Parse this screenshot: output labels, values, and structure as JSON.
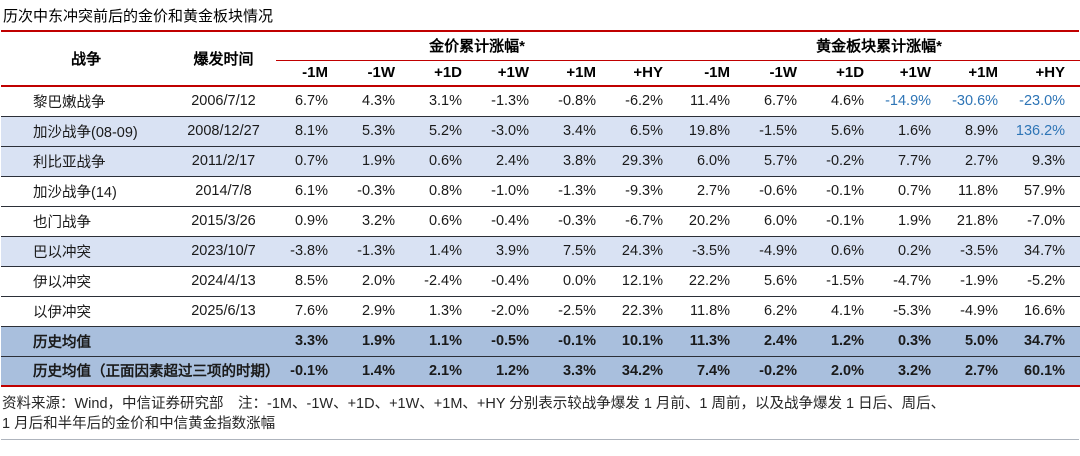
{
  "title": "历次中东冲突前后的金价和黄金板块情况",
  "colors": {
    "accent_red": "#C00000",
    "stripe_light_blue": "#D9E2F3",
    "summary_blue": "#A9BFDD",
    "highlight_text_blue": "#2E75B6"
  },
  "table": {
    "col_war": "战争",
    "col_date": "爆发时间",
    "group_gold_price": "金价累计涨幅*",
    "group_gold_sector": "黄金板块累计涨幅*",
    "period_labels": [
      "-1M",
      "-1W",
      "+1D",
      "+1W",
      "+1M",
      "+HY"
    ],
    "rows": [
      {
        "war": "黎巴嫩战争",
        "date": "2006/7/12",
        "style": "plain",
        "summary": false,
        "values": [
          "6.7%",
          "4.3%",
          "3.1%",
          "-1.3%",
          "-0.8%",
          "-6.2%",
          "11.4%",
          "6.7%",
          "4.6%",
          "-14.9%",
          "-30.6%",
          "-23.0%"
        ],
        "blue": [
          9,
          10,
          11
        ]
      },
      {
        "war": "加沙战争(08-09)",
        "date": "2008/12/27",
        "style": "light",
        "summary": false,
        "values": [
          "8.1%",
          "5.3%",
          "5.2%",
          "-3.0%",
          "3.4%",
          "6.5%",
          "19.8%",
          "-1.5%",
          "5.6%",
          "1.6%",
          "8.9%",
          "136.2%"
        ],
        "blue": [
          11
        ]
      },
      {
        "war": "利比亚战争",
        "date": "2011/2/17",
        "style": "light",
        "summary": false,
        "values": [
          "0.7%",
          "1.9%",
          "0.6%",
          "2.4%",
          "3.8%",
          "29.3%",
          "6.0%",
          "5.7%",
          "-0.2%",
          "7.7%",
          "2.7%",
          "9.3%"
        ],
        "blue": []
      },
      {
        "war": "加沙战争(14)",
        "date": "2014/7/8",
        "style": "plain",
        "summary": false,
        "values": [
          "6.1%",
          "-0.3%",
          "0.8%",
          "-1.0%",
          "-1.3%",
          "-9.3%",
          "2.7%",
          "-0.6%",
          "-0.1%",
          "0.7%",
          "11.8%",
          "57.9%"
        ],
        "blue": []
      },
      {
        "war": "也门战争",
        "date": "2015/3/26",
        "style": "plain",
        "summary": false,
        "values": [
          "0.9%",
          "3.2%",
          "0.6%",
          "-0.4%",
          "-0.3%",
          "-6.7%",
          "20.2%",
          "6.0%",
          "-0.1%",
          "1.9%",
          "21.8%",
          "-7.0%"
        ],
        "blue": []
      },
      {
        "war": "巴以冲突",
        "date": "2023/10/7",
        "style": "light",
        "summary": false,
        "values": [
          "-3.8%",
          "-1.3%",
          "1.4%",
          "3.9%",
          "7.5%",
          "24.3%",
          "-3.5%",
          "-4.9%",
          "0.6%",
          "0.2%",
          "-3.5%",
          "34.7%"
        ],
        "blue": []
      },
      {
        "war": "伊以冲突",
        "date": "2024/4/13",
        "style": "plain",
        "summary": false,
        "values": [
          "8.5%",
          "2.0%",
          "-2.4%",
          "-0.4%",
          "0.0%",
          "12.1%",
          "22.2%",
          "5.6%",
          "-1.5%",
          "-4.7%",
          "-1.9%",
          "-5.2%"
        ],
        "blue": []
      },
      {
        "war": "以伊冲突",
        "date": "2025/6/13",
        "style": "plain",
        "summary": false,
        "values": [
          "7.6%",
          "2.9%",
          "1.3%",
          "-2.0%",
          "-2.5%",
          "22.3%",
          "11.8%",
          "6.2%",
          "4.1%",
          "-5.3%",
          "-4.9%",
          "16.6%"
        ],
        "blue": []
      },
      {
        "war": "历史均值",
        "date": "",
        "style": "dark",
        "summary": true,
        "values": [
          "3.3%",
          "1.9%",
          "1.1%",
          "-0.5%",
          "-0.1%",
          "10.1%",
          "11.3%",
          "2.4%",
          "1.2%",
          "0.3%",
          "5.0%",
          "34.7%"
        ],
        "blue": []
      },
      {
        "war": "历史均值（正面因素超过三项的时期）",
        "date": "",
        "style": "dark",
        "summary": true,
        "values": [
          "-0.1%",
          "1.4%",
          "2.1%",
          "1.2%",
          "3.3%",
          "34.2%",
          "7.4%",
          "-0.2%",
          "2.0%",
          "3.2%",
          "2.7%",
          "60.1%"
        ],
        "blue": []
      }
    ]
  },
  "footnote_line1": "资料来源：Wind，中信证券研究部　注：-1M、-1W、+1D、+1W、+1M、+HY 分别表示较战争爆发 1 月前、1 周前，以及战争爆发 1 日后、周后、",
  "footnote_line2": "1 月后和半年后的金价和中信黄金指数涨幅"
}
